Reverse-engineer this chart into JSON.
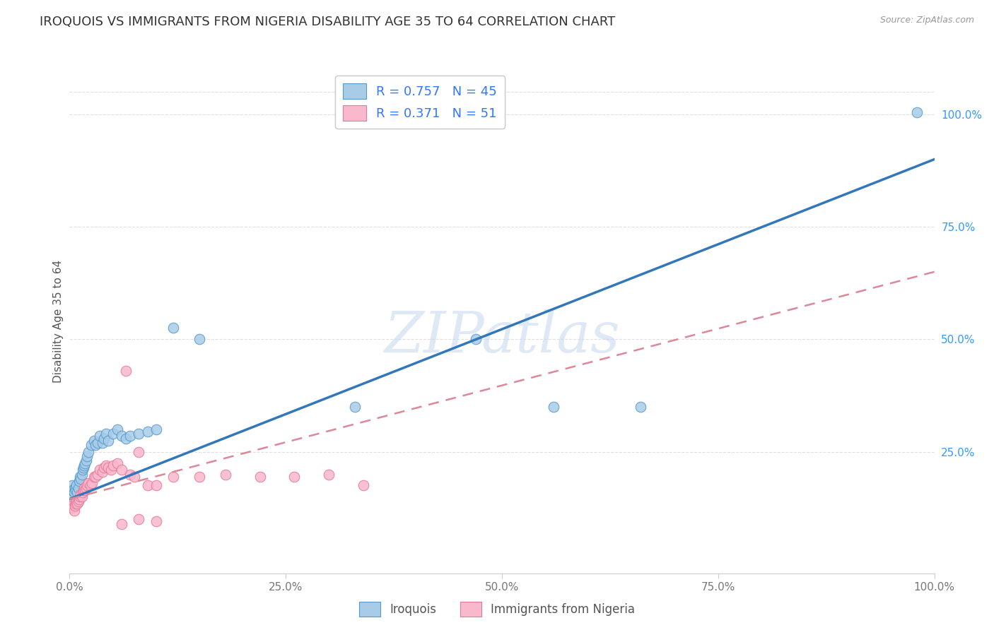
{
  "title": "IROQUOIS VS IMMIGRANTS FROM NIGERIA DISABILITY AGE 35 TO 64 CORRELATION CHART",
  "source": "Source: ZipAtlas.com",
  "ylabel": "Disability Age 35 to 64",
  "xlim": [
    0,
    1.0
  ],
  "ylim": [
    -0.02,
    1.1
  ],
  "xticks": [
    0.0,
    0.25,
    0.5,
    0.75,
    1.0
  ],
  "xticklabels": [
    "0.0%",
    "25.0%",
    "50.0%",
    "75.0%",
    "100.0%"
  ],
  "ytick_positions": [
    0.25,
    0.5,
    0.75,
    1.0
  ],
  "ytick_labels_right": [
    "25.0%",
    "50.0%",
    "75.0%",
    "100.0%"
  ],
  "blue_color": "#a8cce8",
  "blue_edge_color": "#5599cc",
  "blue_line_color": "#3377bb",
  "pink_color": "#f9b8cc",
  "pink_edge_color": "#e87799",
  "pink_line_color": "#dd8899",
  "r_blue": 0.757,
  "n_blue": 45,
  "r_pink": 0.371,
  "n_pink": 51,
  "legend_label_blue": "Iroquois",
  "legend_label_pink": "Immigrants from Nigeria",
  "watermark": "ZIPatlas",
  "blue_line_x0": 0.0,
  "blue_line_y0": 0.145,
  "blue_line_x1": 1.0,
  "blue_line_y1": 0.9,
  "pink_line_x0": 0.0,
  "pink_line_y0": 0.145,
  "pink_line_x1": 1.0,
  "pink_line_y1": 0.65,
  "blue_scatter_x": [
    0.001,
    0.002,
    0.003,
    0.004,
    0.005,
    0.006,
    0.007,
    0.008,
    0.009,
    0.01,
    0.011,
    0.012,
    0.013,
    0.014,
    0.015,
    0.016,
    0.017,
    0.018,
    0.019,
    0.02,
    0.022,
    0.025,
    0.028,
    0.03,
    0.032,
    0.035,
    0.038,
    0.04,
    0.042,
    0.045,
    0.05,
    0.055,
    0.06,
    0.065,
    0.07,
    0.08,
    0.09,
    0.1,
    0.12,
    0.15,
    0.33,
    0.47,
    0.56,
    0.66,
    0.98
  ],
  "blue_scatter_y": [
    0.155,
    0.165,
    0.175,
    0.165,
    0.16,
    0.17,
    0.165,
    0.175,
    0.16,
    0.17,
    0.185,
    0.195,
    0.19,
    0.2,
    0.21,
    0.215,
    0.22,
    0.225,
    0.23,
    0.24,
    0.25,
    0.265,
    0.275,
    0.265,
    0.27,
    0.285,
    0.27,
    0.28,
    0.29,
    0.275,
    0.29,
    0.3,
    0.285,
    0.28,
    0.285,
    0.29,
    0.295,
    0.3,
    0.525,
    0.5,
    0.35,
    0.5,
    0.35,
    0.35,
    1.005
  ],
  "pink_scatter_x": [
    0.001,
    0.002,
    0.003,
    0.004,
    0.005,
    0.006,
    0.007,
    0.008,
    0.009,
    0.01,
    0.011,
    0.012,
    0.013,
    0.014,
    0.015,
    0.016,
    0.017,
    0.018,
    0.019,
    0.02,
    0.022,
    0.024,
    0.026,
    0.028,
    0.03,
    0.032,
    0.035,
    0.038,
    0.04,
    0.042,
    0.045,
    0.048,
    0.05,
    0.055,
    0.06,
    0.065,
    0.07,
    0.075,
    0.08,
    0.09,
    0.1,
    0.12,
    0.15,
    0.18,
    0.22,
    0.26,
    0.3,
    0.34,
    0.06,
    0.08,
    0.1
  ],
  "pink_scatter_y": [
    0.13,
    0.125,
    0.13,
    0.125,
    0.12,
    0.13,
    0.135,
    0.14,
    0.135,
    0.14,
    0.145,
    0.15,
    0.155,
    0.15,
    0.16,
    0.165,
    0.17,
    0.165,
    0.17,
    0.175,
    0.18,
    0.175,
    0.18,
    0.195,
    0.195,
    0.2,
    0.21,
    0.205,
    0.215,
    0.22,
    0.215,
    0.21,
    0.22,
    0.225,
    0.21,
    0.43,
    0.2,
    0.195,
    0.25,
    0.175,
    0.175,
    0.195,
    0.195,
    0.2,
    0.195,
    0.195,
    0.2,
    0.175,
    0.09,
    0.1,
    0.095
  ],
  "background_color": "#ffffff",
  "grid_color": "#e0e0e0"
}
